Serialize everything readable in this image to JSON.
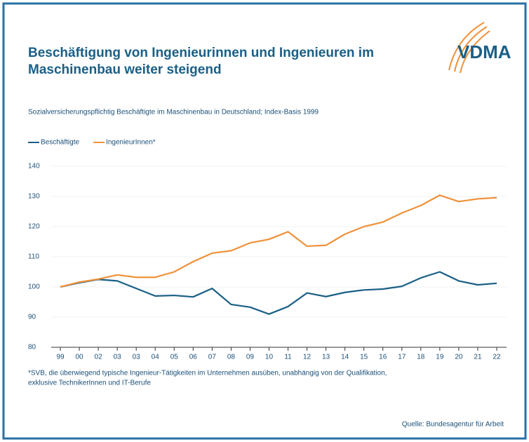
{
  "chart_data": {
    "type": "line",
    "title": [
      "Beschäftigung von Ingenieurinnen und Ingenieuren im",
      "Maschinenbau weiter steigend"
    ],
    "logo": "VDMA",
    "subtitle": "Sozialversicherungspflichtig Beschäftigte im Maschinenbau in Deutschland; Index-Basis 1999",
    "categories": [
      "99",
      "00",
      "02",
      "03",
      "03",
      "04",
      "05",
      "06",
      "07",
      "08",
      "09",
      "10",
      "11",
      "12",
      "13",
      "14",
      "15",
      "16",
      "17",
      "18",
      "19",
      "20",
      "21",
      "22"
    ],
    "series": [
      {
        "name": "Beschäftigte",
        "color": "#1a5f86",
        "values": [
          100,
          101.4,
          102.5,
          102,
          99.5,
          97,
          97.2,
          96.7,
          99.5,
          94.2,
          93.3,
          91,
          93.5,
          98,
          96.8,
          98.2,
          99,
          99.3,
          100.2,
          103,
          105,
          102,
          100.7,
          101.2
        ]
      },
      {
        "name": "IngenieurInnen*",
        "color": "#f0913a",
        "values": [
          100,
          101.6,
          102.6,
          104,
          103.2,
          103.2,
          105,
          108.4,
          111.2,
          112,
          114.6,
          115.8,
          118.3,
          113.5,
          113.8,
          117.5,
          120,
          121.5,
          124.5,
          127,
          130.4,
          128.3,
          129.2,
          129.6
        ]
      }
    ],
    "ylim": [
      80,
      140
    ],
    "yticks": [
      80,
      90,
      100,
      110,
      120,
      130,
      140
    ],
    "grid": true,
    "footnote": [
      "*SVB, die überwiegend typische Ingenieur-Tätigkeiten im Unternehmen ausüben, unabhängig von der Qualifikation,",
      "exklusive TechnikerInnen und IT-Berufe"
    ],
    "source": "Quelle: Bundesagentur für Arbeit"
  }
}
